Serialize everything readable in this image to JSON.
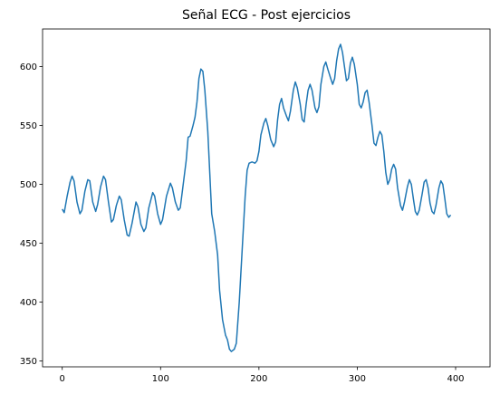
{
  "chart_data": {
    "type": "line",
    "title": "Señal ECG - Post ejercicios",
    "x": [
      0,
      2,
      5,
      8,
      10,
      12,
      15,
      18,
      20,
      23,
      26,
      28,
      31,
      34,
      36,
      39,
      42,
      44,
      47,
      50,
      52,
      55,
      58,
      60,
      63,
      66,
      68,
      71,
      75,
      77,
      80,
      83,
      85,
      88,
      92,
      94,
      97,
      100,
      102,
      106,
      110,
      112,
      115,
      118,
      120,
      123,
      126,
      128,
      130,
      133,
      135,
      137,
      139,
      141,
      143,
      145,
      148,
      150,
      152,
      155,
      158,
      160,
      163,
      166,
      168,
      170,
      172,
      175,
      177,
      180,
      183,
      186,
      188,
      190,
      193,
      196,
      198,
      200,
      202,
      205,
      207,
      209,
      212,
      215,
      217,
      219,
      221,
      223,
      225,
      228,
      230,
      232,
      235,
      237,
      239,
      242,
      244,
      246,
      248,
      250,
      252,
      254,
      257,
      259,
      261,
      263,
      266,
      268,
      270,
      273,
      275,
      277,
      279,
      281,
      283,
      285,
      287,
      289,
      291,
      293,
      295,
      297,
      300,
      302,
      304,
      306,
      308,
      310,
      312,
      315,
      317,
      319,
      321,
      323,
      325,
      327,
      329,
      331,
      333,
      335,
      337,
      339,
      341,
      344,
      346,
      348,
      351,
      353,
      355,
      357,
      359,
      361,
      363,
      366,
      368,
      370,
      372,
      374,
      376,
      378,
      380,
      383,
      385,
      387,
      389,
      391,
      393,
      395
    ],
    "values": [
      479,
      476,
      490,
      502,
      507,
      503,
      485,
      475,
      478,
      494,
      504,
      503,
      485,
      477,
      483,
      498,
      507,
      504,
      485,
      468,
      470,
      482,
      490,
      487,
      470,
      457,
      456,
      467,
      485,
      481,
      466,
      460,
      463,
      480,
      493,
      490,
      475,
      466,
      470,
      490,
      501,
      497,
      485,
      478,
      480,
      500,
      520,
      540,
      541,
      550,
      557,
      570,
      590,
      598,
      596,
      580,
      545,
      510,
      475,
      460,
      440,
      410,
      385,
      372,
      368,
      360,
      358,
      360,
      365,
      400,
      445,
      490,
      512,
      518,
      519,
      518,
      520,
      528,
      542,
      552,
      556,
      550,
      538,
      532,
      536,
      555,
      568,
      573,
      565,
      558,
      554,
      562,
      580,
      587,
      582,
      568,
      555,
      553,
      568,
      580,
      585,
      580,
      565,
      561,
      566,
      585,
      600,
      604,
      598,
      590,
      585,
      590,
      605,
      615,
      619,
      612,
      600,
      588,
      590,
      603,
      608,
      602,
      585,
      568,
      565,
      570,
      578,
      580,
      570,
      550,
      535,
      533,
      540,
      545,
      542,
      528,
      510,
      500,
      504,
      513,
      517,
      513,
      497,
      482,
      478,
      485,
      498,
      504,
      500,
      488,
      477,
      474,
      478,
      492,
      502,
      504,
      497,
      484,
      477,
      475,
      482,
      497,
      503,
      500,
      488,
      475,
      472,
      474
    ],
    "color": "#1f77b4",
    "xlim": [
      -20,
      435
    ],
    "xticks": [
      0,
      100,
      200,
      300,
      400
    ],
    "ylim": [
      345,
      632
    ],
    "yticks": [
      350,
      400,
      450,
      500,
      550,
      600
    ]
  }
}
